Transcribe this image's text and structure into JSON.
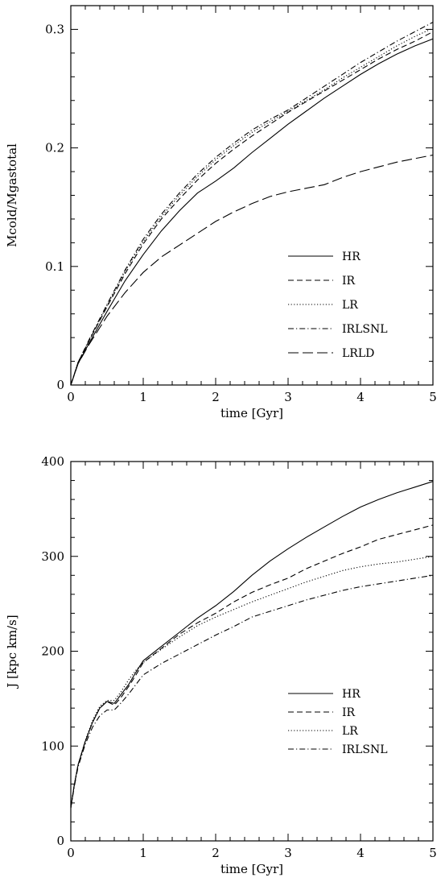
{
  "chart_data": [
    {
      "type": "line",
      "title": "",
      "xlabel": "time [Gyr]",
      "ylabel": "Mcold/Mgastotal",
      "xlim": [
        0,
        5
      ],
      "ylim": [
        0,
        0.32
      ],
      "xticks": [
        0,
        1,
        2,
        3,
        4,
        5
      ],
      "xtick_labels": [
        "0",
        "1",
        "2",
        "3",
        "4",
        "5"
      ],
      "yticks": [
        0,
        0.1,
        0.2,
        0.3
      ],
      "ytick_labels": [
        "0",
        "0.1",
        "0.2",
        "0.3"
      ],
      "grid": false,
      "legend_position": "bottom-right",
      "x": [
        0,
        0.1,
        0.25,
        0.5,
        0.75,
        1.0,
        1.25,
        1.5,
        1.75,
        2.0,
        2.25,
        2.5,
        2.75,
        3.0,
        3.25,
        3.5,
        3.75,
        4.0,
        4.25,
        4.5,
        4.75,
        5.0
      ],
      "series": [
        {
          "name": "HR",
          "dash": "solid",
          "values": [
            0,
            0.018,
            0.035,
            0.062,
            0.088,
            0.11,
            0.13,
            0.147,
            0.162,
            0.172,
            0.183,
            0.196,
            0.208,
            0.22,
            0.231,
            0.242,
            0.252,
            0.262,
            0.271,
            0.279,
            0.286,
            0.292
          ]
        },
        {
          "name": "IR",
          "dash": "dashed",
          "values": [
            0,
            0.019,
            0.037,
            0.066,
            0.094,
            0.119,
            0.14,
            0.157,
            0.173,
            0.187,
            0.199,
            0.21,
            0.22,
            0.23,
            0.239,
            0.248,
            0.257,
            0.266,
            0.275,
            0.283,
            0.29,
            0.298
          ]
        },
        {
          "name": "LR",
          "dash": "dotted",
          "values": [
            0,
            0.019,
            0.037,
            0.067,
            0.096,
            0.121,
            0.142,
            0.16,
            0.176,
            0.19,
            0.202,
            0.213,
            0.222,
            0.231,
            0.24,
            0.249,
            0.259,
            0.268,
            0.277,
            0.286,
            0.294,
            0.301
          ]
        },
        {
          "name": "IRLSNL",
          "dash": "dashdot",
          "values": [
            0,
            0.019,
            0.038,
            0.068,
            0.097,
            0.123,
            0.144,
            0.162,
            0.178,
            0.192,
            0.204,
            0.215,
            0.224,
            0.232,
            0.242,
            0.252,
            0.262,
            0.272,
            0.281,
            0.29,
            0.298,
            0.306
          ]
        },
        {
          "name": "LRLD",
          "dash": "longdash",
          "values": [
            0,
            0.018,
            0.034,
            0.058,
            0.078,
            0.095,
            0.108,
            0.118,
            0.128,
            0.138,
            0.146,
            0.153,
            0.159,
            0.163,
            0.166,
            0.169,
            0.175,
            0.18,
            0.184,
            0.188,
            0.191,
            0.194
          ]
        }
      ]
    },
    {
      "type": "line",
      "title": "",
      "xlabel": "time [Gyr]",
      "ylabel": "J [kpc km/s]",
      "xlim": [
        0,
        5
      ],
      "ylim": [
        0,
        400
      ],
      "xticks": [
        0,
        1,
        2,
        3,
        4,
        5
      ],
      "xtick_labels": [
        "0",
        "1",
        "2",
        "3",
        "4",
        "5"
      ],
      "yticks": [
        0,
        100,
        200,
        300,
        400
      ],
      "ytick_labels": [
        "0",
        "100",
        "200",
        "300",
        "400"
      ],
      "grid": false,
      "legend_position": "bottom-right",
      "x": [
        0,
        0.05,
        0.1,
        0.2,
        0.3,
        0.4,
        0.5,
        0.6,
        0.7,
        0.8,
        0.9,
        1.0,
        1.25,
        1.5,
        1.75,
        2.0,
        2.25,
        2.5,
        2.75,
        3.0,
        3.25,
        3.5,
        3.75,
        4.0,
        4.25,
        4.5,
        4.75,
        5.0
      ],
      "series": [
        {
          "name": "HR",
          "dash": "solid",
          "values": [
            35,
            60,
            80,
            105,
            125,
            140,
            147,
            145,
            155,
            165,
            178,
            190,
            205,
            220,
            235,
            248,
            263,
            280,
            295,
            308,
            320,
            331,
            342,
            352,
            360,
            367,
            373,
            379
          ]
        },
        {
          "name": "IR",
          "dash": "dashed",
          "values": [
            35,
            60,
            80,
            105,
            125,
            140,
            147,
            143,
            152,
            163,
            175,
            188,
            203,
            218,
            230,
            240,
            252,
            262,
            270,
            277,
            287,
            295,
            303,
            310,
            318,
            323,
            328,
            333
          ]
        },
        {
          "name": "LR",
          "dash": "dotted",
          "values": [
            35,
            60,
            80,
            106,
            127,
            142,
            148,
            148,
            158,
            170,
            180,
            188,
            202,
            215,
            227,
            236,
            244,
            252,
            259,
            266,
            273,
            279,
            285,
            289,
            292,
            294,
            297,
            300
          ]
        },
        {
          "name": "IRLSNL",
          "dash": "dashdot",
          "values": [
            35,
            58,
            78,
            102,
            120,
            132,
            138,
            138,
            146,
            155,
            165,
            175,
            187,
            197,
            207,
            217,
            226,
            236,
            242,
            248,
            254,
            259,
            264,
            268,
            271,
            274,
            277,
            280
          ]
        }
      ]
    }
  ]
}
